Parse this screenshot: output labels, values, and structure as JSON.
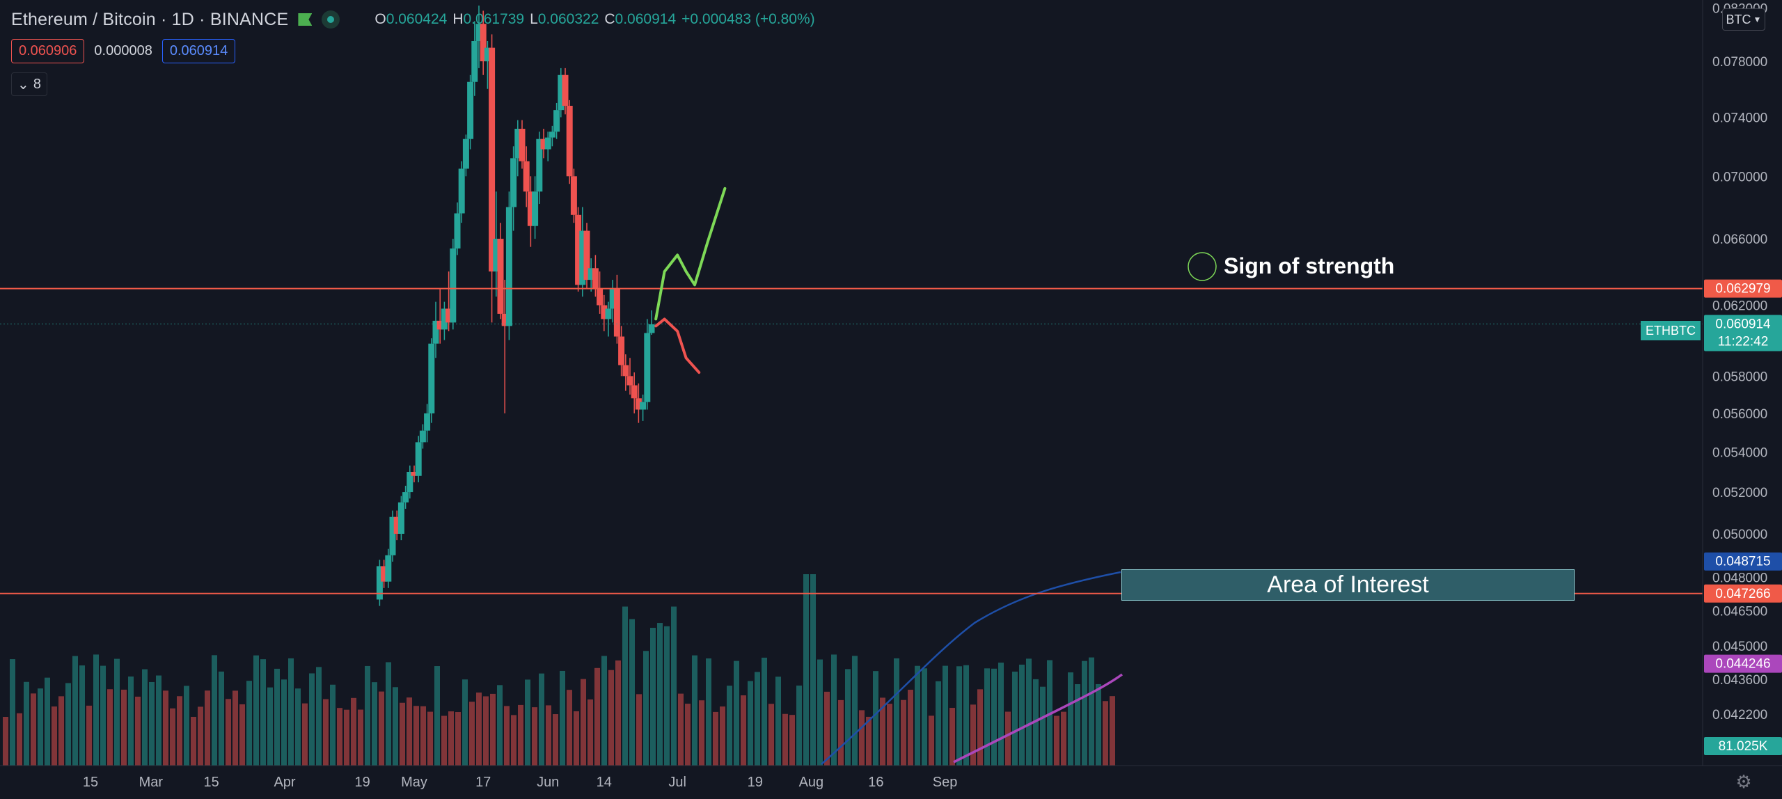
{
  "header": {
    "symbol": "Ethereum / Bitcoin · 1D · BINANCE",
    "ohlc": [
      {
        "k": "O",
        "v": "0.060424"
      },
      {
        "k": "H",
        "v": "0.061739"
      },
      {
        "k": "L",
        "v": "0.060322"
      },
      {
        "k": "C",
        "v": "0.060914"
      },
      {
        "k": "",
        "v": "+0.000483 (+0.80%)"
      }
    ],
    "sell_price": "0.060906",
    "spread": "0.000008",
    "buy_price": "0.060914",
    "indicators_count": "8",
    "currency": "BTC"
  },
  "colors": {
    "background": "#131722",
    "up": "#26a69a",
    "down": "#ef5350",
    "resistance_line": "#f05a48",
    "ma_fast": "#1e4fa8",
    "ma_slow": "#ab47bc",
    "bullish_path": "#7ed957",
    "bearish_path": "#ef5350"
  },
  "icons": [
    "flag-icon",
    "status-dot-icon",
    "chevron-down-icon",
    "gear-icon"
  ],
  "annotations": {
    "sign_of_strength": "Sign of strength",
    "area_of_interest": "Area of Interest",
    "symbol_tag": "ETHBTC"
  },
  "chart_data": {
    "type": "candlestick",
    "interval": "1D",
    "y_scale": "log",
    "x_ticks": [
      {
        "label": "15",
        "date": "2021-02-15"
      },
      {
        "label": "Mar",
        "date": "2021-03-01"
      },
      {
        "label": "15",
        "date": "2021-03-15"
      },
      {
        "label": "Apr",
        "date": "2021-04-01"
      },
      {
        "label": "19",
        "date": "2021-04-19"
      },
      {
        "label": "May",
        "date": "2021-05-01"
      },
      {
        "label": "17",
        "date": "2021-05-17"
      },
      {
        "label": "Jun",
        "date": "2021-06-01"
      },
      {
        "label": "14",
        "date": "2021-06-14"
      },
      {
        "label": "Jul",
        "date": "2021-07-01"
      },
      {
        "label": "19",
        "date": "2021-07-19"
      },
      {
        "label": "Aug",
        "date": "2021-08-01"
      },
      {
        "label": "16",
        "date": "2021-08-16"
      },
      {
        "label": "Sep",
        "date": "2021-09-01"
      }
    ],
    "y_ticks": [
      "0.082000",
      "0.078000",
      "0.074000",
      "0.070000",
      "0.066000",
      "0.062000",
      "0.058000",
      "0.056000",
      "0.054000",
      "0.052000",
      "0.050000",
      "0.048000",
      "0.046500",
      "0.045000",
      "0.043600",
      "0.042200",
      "0.040800"
    ],
    "y_range": [
      0.0402,
      0.0822
    ],
    "price_tags": [
      {
        "value": "0.062979",
        "color": "#f05a48",
        "kind": "resistance"
      },
      {
        "value": "0.060914",
        "color": "#26a69a",
        "kind": "last",
        "countdown": "11:22:42"
      },
      {
        "value": "0.048715",
        "color": "#1e4fa8",
        "kind": "ma"
      },
      {
        "value": "0.047266",
        "color": "#f05a48",
        "kind": "support"
      },
      {
        "value": "0.044246",
        "color": "#ab47bc",
        "kind": "ma"
      },
      {
        "value": "81.025K",
        "color": "#26a69a",
        "kind": "volume"
      }
    ],
    "horizontal_lines": [
      0.062979,
      0.047266
    ],
    "last_price": 0.060914,
    "candles": [
      {
        "d": "2021-05-04",
        "o": 0.0551,
        "h": 0.0565,
        "l": 0.0545,
        "c": 0.056
      },
      {
        "d": "2021-05-05",
        "o": 0.056,
        "h": 0.0601,
        "l": 0.0555,
        "c": 0.0598
      },
      {
        "d": "2021-05-06",
        "o": 0.0598,
        "h": 0.0622,
        "l": 0.059,
        "c": 0.0611
      },
      {
        "d": "2021-05-07",
        "o": 0.0611,
        "h": 0.063,
        "l": 0.0598,
        "c": 0.0606
      },
      {
        "d": "2021-05-08",
        "o": 0.0606,
        "h": 0.0622,
        "l": 0.06,
        "c": 0.0618
      },
      {
        "d": "2021-05-09",
        "o": 0.0618,
        "h": 0.064,
        "l": 0.0605,
        "c": 0.061
      },
      {
        "d": "2021-05-10",
        "o": 0.061,
        "h": 0.066,
        "l": 0.0606,
        "c": 0.0654
      },
      {
        "d": "2021-05-11",
        "o": 0.0654,
        "h": 0.0683,
        "l": 0.065,
        "c": 0.0676
      },
      {
        "d": "2021-05-12",
        "o": 0.0676,
        "h": 0.071,
        "l": 0.067,
        "c": 0.0705
      },
      {
        "d": "2021-05-13",
        "o": 0.0705,
        "h": 0.0728,
        "l": 0.07,
        "c": 0.0725
      },
      {
        "d": "2021-05-14",
        "o": 0.0725,
        "h": 0.077,
        "l": 0.0718,
        "c": 0.0765
      },
      {
        "d": "2021-05-15",
        "o": 0.0765,
        "h": 0.081,
        "l": 0.0755,
        "c": 0.0795
      },
      {
        "d": "2021-05-16",
        "o": 0.0795,
        "h": 0.0822,
        "l": 0.0775,
        "c": 0.0808
      },
      {
        "d": "2021-05-17",
        "o": 0.0808,
        "h": 0.0818,
        "l": 0.077,
        "c": 0.078
      },
      {
        "d": "2021-05-18",
        "o": 0.078,
        "h": 0.0795,
        "l": 0.076,
        "c": 0.079
      },
      {
        "d": "2021-05-19",
        "o": 0.079,
        "h": 0.08,
        "l": 0.061,
        "c": 0.064
      },
      {
        "d": "2021-05-20",
        "o": 0.064,
        "h": 0.069,
        "l": 0.0625,
        "c": 0.066
      },
      {
        "d": "2021-05-21",
        "o": 0.066,
        "h": 0.067,
        "l": 0.0612,
        "c": 0.0615
      },
      {
        "d": "2021-05-22",
        "o": 0.0615,
        "h": 0.0635,
        "l": 0.056,
        "c": 0.0608
      },
      {
        "d": "2021-05-23",
        "o": 0.0608,
        "h": 0.069,
        "l": 0.06,
        "c": 0.068
      },
      {
        "d": "2021-05-24",
        "o": 0.068,
        "h": 0.072,
        "l": 0.0665,
        "c": 0.0712
      },
      {
        "d": "2021-05-25",
        "o": 0.0712,
        "h": 0.0738,
        "l": 0.07,
        "c": 0.0732
      },
      {
        "d": "2021-05-26",
        "o": 0.0732,
        "h": 0.0738,
        "l": 0.0705,
        "c": 0.071
      },
      {
        "d": "2021-05-27",
        "o": 0.071,
        "h": 0.072,
        "l": 0.068,
        "c": 0.069
      },
      {
        "d": "2021-05-28",
        "o": 0.069,
        "h": 0.07,
        "l": 0.0655,
        "c": 0.0668
      },
      {
        "d": "2021-05-29",
        "o": 0.0668,
        "h": 0.07,
        "l": 0.066,
        "c": 0.069
      },
      {
        "d": "2021-05-30",
        "o": 0.069,
        "h": 0.073,
        "l": 0.0682,
        "c": 0.0725
      },
      {
        "d": "2021-05-31",
        "o": 0.0725,
        "h": 0.0732,
        "l": 0.0712,
        "c": 0.0718
      },
      {
        "d": "2021-06-01",
        "o": 0.0718,
        "h": 0.073,
        "l": 0.071,
        "c": 0.0726
      },
      {
        "d": "2021-06-02",
        "o": 0.0726,
        "h": 0.0734,
        "l": 0.072,
        "c": 0.073
      },
      {
        "d": "2021-06-03",
        "o": 0.073,
        "h": 0.075,
        "l": 0.0725,
        "c": 0.0745
      },
      {
        "d": "2021-06-04",
        "o": 0.0745,
        "h": 0.0775,
        "l": 0.074,
        "c": 0.077
      },
      {
        "d": "2021-06-05",
        "o": 0.077,
        "h": 0.0775,
        "l": 0.0742,
        "c": 0.0748
      },
      {
        "d": "2021-06-06",
        "o": 0.0748,
        "h": 0.0752,
        "l": 0.0695,
        "c": 0.07
      },
      {
        "d": "2021-06-07",
        "o": 0.07,
        "h": 0.0705,
        "l": 0.067,
        "c": 0.0675
      },
      {
        "d": "2021-06-08",
        "o": 0.0675,
        "h": 0.068,
        "l": 0.0628,
        "c": 0.0632
      },
      {
        "d": "2021-06-09",
        "o": 0.0632,
        "h": 0.068,
        "l": 0.0625,
        "c": 0.0665
      },
      {
        "d": "2021-06-10",
        "o": 0.0665,
        "h": 0.067,
        "l": 0.063,
        "c": 0.0635
      },
      {
        "d": "2021-06-11",
        "o": 0.0635,
        "h": 0.0648,
        "l": 0.0628,
        "c": 0.0642
      },
      {
        "d": "2021-06-12",
        "o": 0.0642,
        "h": 0.065,
        "l": 0.0625,
        "c": 0.063
      },
      {
        "d": "2021-06-13",
        "o": 0.063,
        "h": 0.064,
        "l": 0.0615,
        "c": 0.062
      },
      {
        "d": "2021-06-14",
        "o": 0.062,
        "h": 0.0626,
        "l": 0.0605,
        "c": 0.0612
      },
      {
        "d": "2021-06-15",
        "o": 0.0612,
        "h": 0.0622,
        "l": 0.0602,
        "c": 0.0618
      },
      {
        "d": "2021-06-16",
        "o": 0.0618,
        "h": 0.0635,
        "l": 0.061,
        "c": 0.063
      },
      {
        "d": "2021-06-17",
        "o": 0.063,
        "h": 0.0638,
        "l": 0.0598,
        "c": 0.0602
      },
      {
        "d": "2021-06-18",
        "o": 0.0602,
        "h": 0.0608,
        "l": 0.058,
        "c": 0.0586
      },
      {
        "d": "2021-06-19",
        "o": 0.0586,
        "h": 0.0592,
        "l": 0.0572,
        "c": 0.058
      },
      {
        "d": "2021-06-20",
        "o": 0.058,
        "h": 0.059,
        "l": 0.057,
        "c": 0.0575
      },
      {
        "d": "2021-06-21",
        "o": 0.0575,
        "h": 0.0582,
        "l": 0.056,
        "c": 0.0568
      },
      {
        "d": "2021-06-22",
        "o": 0.0568,
        "h": 0.0576,
        "l": 0.0555,
        "c": 0.0562
      },
      {
        "d": "2021-06-23",
        "o": 0.0562,
        "h": 0.057,
        "l": 0.0556,
        "c": 0.0566
      },
      {
        "d": "2021-06-24",
        "o": 0.0566,
        "h": 0.0612,
        "l": 0.0562,
        "c": 0.0604
      },
      {
        "d": "2021-06-25",
        "o": 0.0604,
        "h": 0.0617,
        "l": 0.0603,
        "c": 0.0609
      }
    ],
    "volume": {
      "last": "81.025K",
      "ma_fast_label": "0.048715",
      "ma_slow_label": "0.044246"
    },
    "drawings": {
      "bullish_projection": [
        [
          "2021-06-26",
          0.0612
        ],
        [
          "2021-06-28",
          0.064
        ],
        [
          "2021-07-01",
          0.065
        ],
        [
          "2021-07-03",
          0.064
        ],
        [
          "2021-07-05",
          0.0632
        ],
        [
          "2021-07-08",
          0.0658
        ],
        [
          "2021-07-12",
          0.0692
        ]
      ],
      "bearish_projection": [
        [
          "2021-06-26",
          0.0608
        ],
        [
          "2021-06-28",
          0.0612
        ],
        [
          "2021-07-01",
          0.0605
        ],
        [
          "2021-07-03",
          0.059
        ],
        [
          "2021-07-06",
          0.0582
        ]
      ],
      "area_of_interest": {
        "from": "2021-06-25",
        "to": "2021-08-19",
        "top": 0.0488,
        "bottom": 0.0474
      }
    }
  }
}
